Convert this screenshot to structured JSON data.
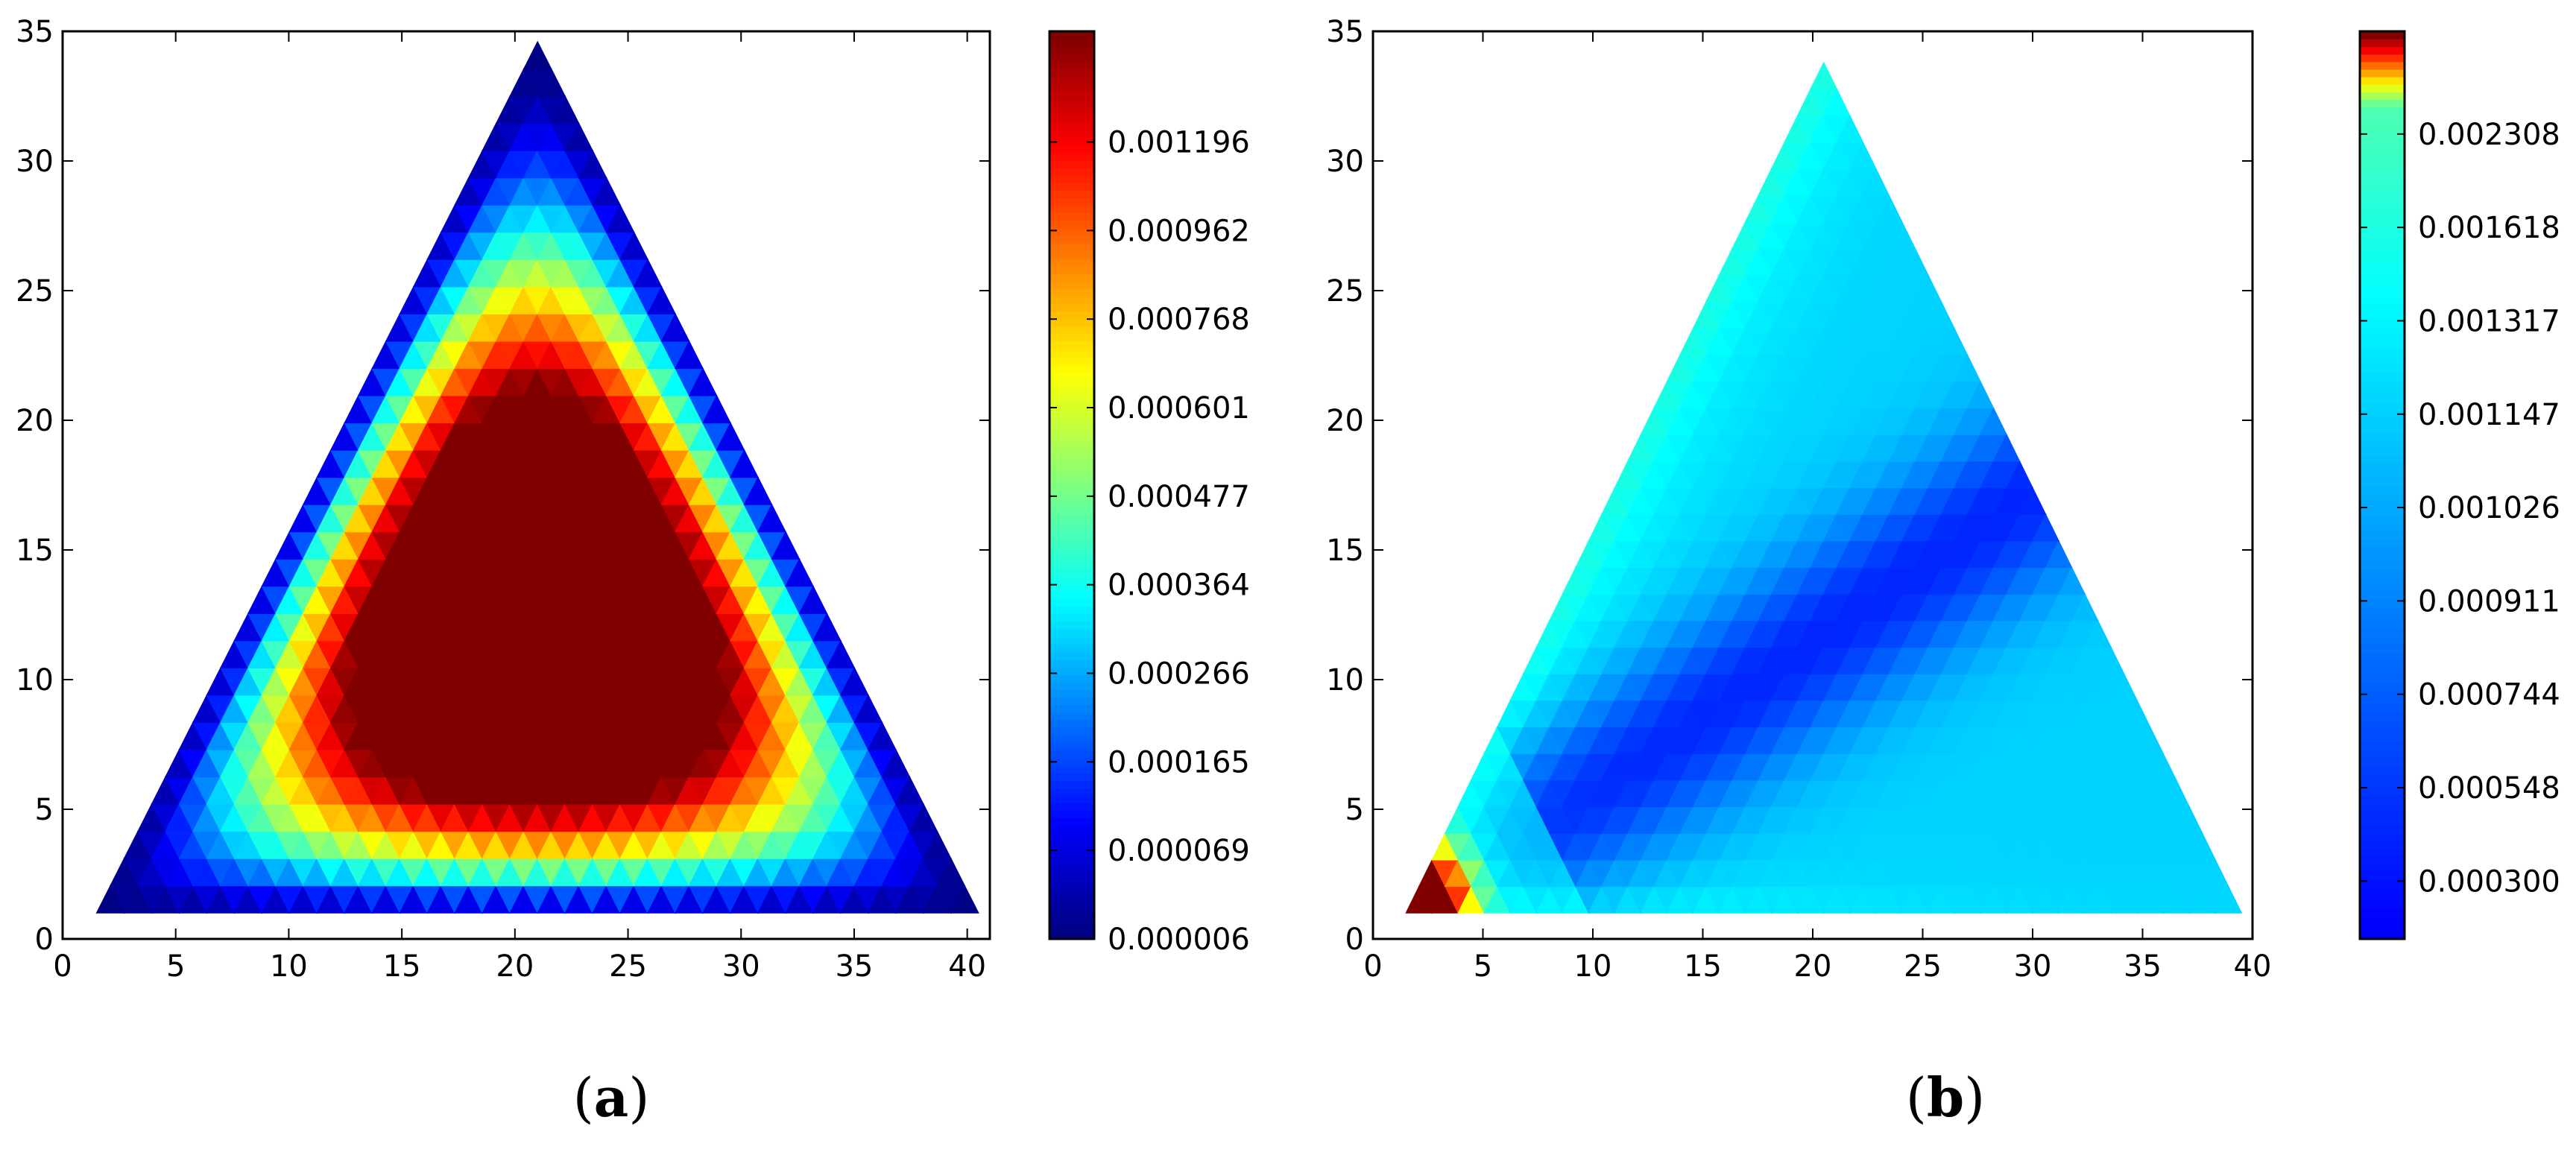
{
  "figure": {
    "panels": [
      {
        "label": "a"
      },
      {
        "label": "b"
      }
    ]
  },
  "chart_data": [
    {
      "type": "heatmap",
      "subtype": "triangular-mesh (tripcolor)",
      "panel": "a",
      "title": "",
      "xlabel": "",
      "ylabel": "",
      "xlim": [
        0,
        41
      ],
      "ylim": [
        0,
        35
      ],
      "x_ticks": [
        "0",
        "5",
        "10",
        "15",
        "20",
        "25",
        "30",
        "35",
        "40"
      ],
      "y_ticks": [
        "0",
        "5",
        "10",
        "15",
        "20",
        "25",
        "30",
        "35"
      ],
      "domain_triangle": [
        [
          1.5,
          1
        ],
        [
          40.5,
          1
        ],
        [
          21,
          34.6
        ]
      ],
      "peak": {
        "x": 16,
        "y": 9,
        "value": 0.0013
      },
      "colormap": "jet",
      "colorbar_ticks": [
        "0.000006",
        "0.000069",
        "0.000165",
        "0.000266",
        "0.000364",
        "0.000477",
        "0.000601",
        "0.000768",
        "0.000962",
        "0.001196"
      ],
      "colorbar_tick_values": [
        6e-06,
        6.9e-05,
        0.000165,
        0.000266,
        0.000364,
        0.000477,
        0.000601,
        0.000768,
        0.000962,
        0.001196
      ],
      "colorbar_max": 0.0013,
      "grid": false
    },
    {
      "type": "heatmap",
      "subtype": "triangular-mesh (tripcolor)",
      "panel": "b",
      "title": "",
      "xlabel": "",
      "ylabel": "",
      "xlim": [
        0,
        40
      ],
      "ylim": [
        0,
        35
      ],
      "x_ticks": [
        "0",
        "5",
        "10",
        "15",
        "20",
        "25",
        "30",
        "35",
        "40"
      ],
      "y_ticks": [
        "0",
        "5",
        "10",
        "15",
        "20",
        "25",
        "30",
        "35"
      ],
      "domain_triangle": [
        [
          1.5,
          1
        ],
        [
          39.5,
          1
        ],
        [
          20.5,
          33.8
        ]
      ],
      "hot_corner": {
        "x": 2.5,
        "y": 2
      },
      "colormap": "jet (non-uniform levels)",
      "colorbar_ticks": [
        "0.000300",
        "0.000548",
        "0.000744",
        "0.000911",
        "0.001026",
        "0.001147",
        "0.001317",
        "0.001618",
        "0.002308"
      ],
      "colorbar_tick_values": [
        0.0003,
        0.000548,
        0.000744,
        0.000911,
        0.001026,
        0.001147,
        0.001317,
        0.001618,
        0.002308
      ],
      "grid": false
    }
  ]
}
